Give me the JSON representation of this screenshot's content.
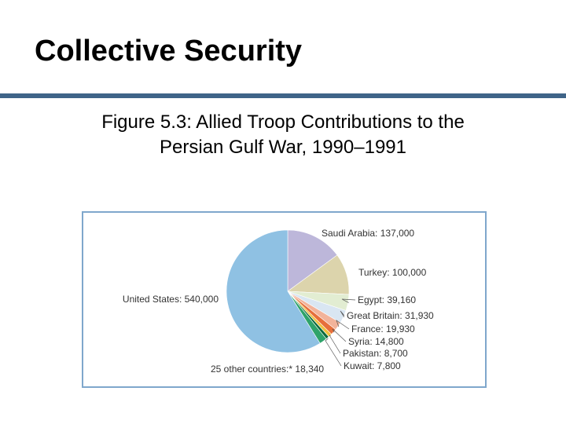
{
  "slide": {
    "title": "Collective Security",
    "caption_line1": "Figure 5.3: Allied Troop Contributions to the",
    "caption_line2": "Persian Gulf War, 1990–1991"
  },
  "chart_data": {
    "type": "pie",
    "title": "",
    "categories": [
      "United States",
      "Saudi Arabia",
      "Turkey",
      "Egypt",
      "Great Britain",
      "France",
      "Syria",
      "Pakistan",
      "Kuwait",
      "25 other countries"
    ],
    "values": [
      540000,
      137000,
      100000,
      39160,
      31930,
      19930,
      14800,
      8700,
      7800,
      18340
    ],
    "labels": [
      "United States: 540,000",
      "Saudi Arabia: 137,000",
      "Turkey: 100,000",
      "Egypt: 39,160",
      "Great Britain: 31,930",
      "France: 19,930",
      "Syria: 14,800",
      "Pakistan: 8,700",
      "Kuwait: 7,800",
      "25 other countries:* 18,340"
    ],
    "colors": [
      "#8fc1e3",
      "#bdb7da",
      "#dcd4ac",
      "#e2edd2",
      "#d9e6f2",
      "#f2b39a",
      "#e76f3b",
      "#f1c13f",
      "#0c6b3e",
      "#2ea36a"
    ],
    "legend": "none"
  }
}
